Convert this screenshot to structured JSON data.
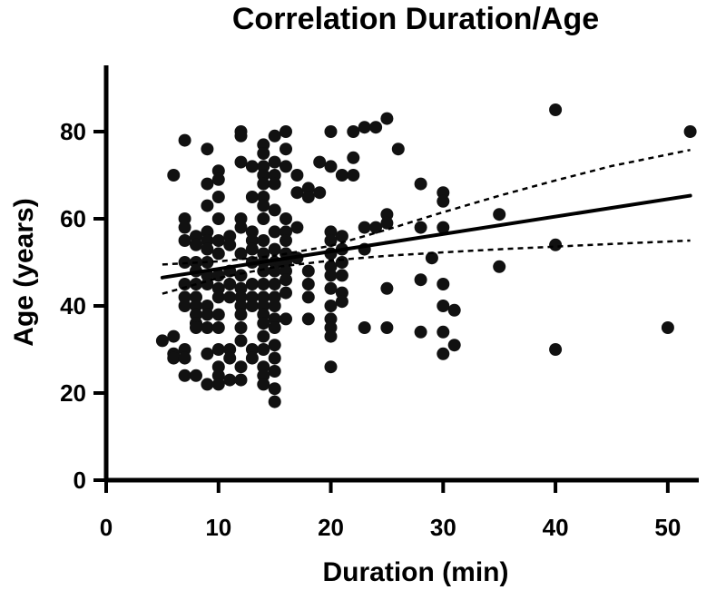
{
  "chart_data": {
    "type": "scatter",
    "title": "Correlation Duration/Age",
    "xlabel": "Duration (min)",
    "ylabel": "Age (years)",
    "xlim": [
      0,
      53
    ],
    "ylim": [
      0,
      93
    ],
    "xticks": [
      0,
      10,
      20,
      30,
      40,
      50
    ],
    "yticks": [
      0,
      20,
      40,
      60,
      80
    ],
    "grid": false,
    "series": [
      {
        "name": "observations",
        "points": [
          [
            5,
            32
          ],
          [
            6,
            33
          ],
          [
            6,
            29
          ],
          [
            6,
            28
          ],
          [
            6,
            70
          ],
          [
            7,
            78
          ],
          [
            7,
            60
          ],
          [
            7,
            58
          ],
          [
            7,
            55
          ],
          [
            7,
            50
          ],
          [
            7,
            45
          ],
          [
            7,
            42
          ],
          [
            7,
            40
          ],
          [
            7,
            30
          ],
          [
            7,
            28
          ],
          [
            7,
            24
          ],
          [
            8,
            56
          ],
          [
            8,
            54
          ],
          [
            8,
            50
          ],
          [
            8,
            48
          ],
          [
            8,
            45
          ],
          [
            8,
            42
          ],
          [
            8,
            40
          ],
          [
            8,
            38
          ],
          [
            8,
            36
          ],
          [
            8,
            35
          ],
          [
            8,
            24
          ],
          [
            9,
            76
          ],
          [
            9,
            68
          ],
          [
            9,
            63
          ],
          [
            9,
            57
          ],
          [
            9,
            55
          ],
          [
            9,
            53
          ],
          [
            9,
            50
          ],
          [
            9,
            47
          ],
          [
            9,
            45
          ],
          [
            9,
            40
          ],
          [
            9,
            38
          ],
          [
            9,
            35
          ],
          [
            9,
            29
          ],
          [
            9,
            22
          ],
          [
            10,
            71
          ],
          [
            10,
            69
          ],
          [
            10,
            65
          ],
          [
            10,
            60
          ],
          [
            10,
            55
          ],
          [
            10,
            52
          ],
          [
            10,
            47
          ],
          [
            10,
            44
          ],
          [
            10,
            42
          ],
          [
            10,
            38
          ],
          [
            10,
            35
          ],
          [
            10,
            30
          ],
          [
            10,
            26
          ],
          [
            10,
            24
          ],
          [
            10,
            22
          ],
          [
            11,
            56
          ],
          [
            11,
            54
          ],
          [
            11,
            48
          ],
          [
            11,
            45
          ],
          [
            11,
            42
          ],
          [
            11,
            30
          ],
          [
            11,
            28
          ],
          [
            11,
            23
          ],
          [
            12,
            80
          ],
          [
            12,
            79
          ],
          [
            12,
            73
          ],
          [
            12,
            60
          ],
          [
            12,
            58
          ],
          [
            12,
            52
          ],
          [
            12,
            47
          ],
          [
            12,
            44
          ],
          [
            12,
            42
          ],
          [
            12,
            40
          ],
          [
            12,
            38
          ],
          [
            12,
            35
          ],
          [
            12,
            32
          ],
          [
            12,
            26
          ],
          [
            12,
            23
          ],
          [
            13,
            72
          ],
          [
            13,
            65
          ],
          [
            13,
            57
          ],
          [
            13,
            55
          ],
          [
            13,
            53
          ],
          [
            13,
            50
          ],
          [
            13,
            45
          ],
          [
            13,
            42
          ],
          [
            13,
            40
          ],
          [
            13,
            30
          ],
          [
            13,
            28
          ],
          [
            14,
            77
          ],
          [
            14,
            75
          ],
          [
            14,
            72
          ],
          [
            14,
            70
          ],
          [
            14,
            68
          ],
          [
            14,
            65
          ],
          [
            14,
            63
          ],
          [
            14,
            60
          ],
          [
            14,
            55
          ],
          [
            14,
            52
          ],
          [
            14,
            50
          ],
          [
            14,
            48
          ],
          [
            14,
            45
          ],
          [
            14,
            42
          ],
          [
            14,
            40
          ],
          [
            14,
            38
          ],
          [
            14,
            36
          ],
          [
            14,
            33
          ],
          [
            14,
            30
          ],
          [
            14,
            26
          ],
          [
            14,
            24
          ],
          [
            14,
            22
          ],
          [
            15,
            79
          ],
          [
            15,
            73
          ],
          [
            15,
            70
          ],
          [
            15,
            68
          ],
          [
            15,
            62
          ],
          [
            15,
            57
          ],
          [
            15,
            53
          ],
          [
            15,
            50
          ],
          [
            15,
            48
          ],
          [
            15,
            45
          ],
          [
            15,
            42
          ],
          [
            15,
            40
          ],
          [
            15,
            37
          ],
          [
            15,
            35
          ],
          [
            15,
            31
          ],
          [
            15,
            28
          ],
          [
            15,
            25
          ],
          [
            15,
            21
          ],
          [
            15,
            18
          ],
          [
            16,
            80
          ],
          [
            16,
            76
          ],
          [
            16,
            72
          ],
          [
            16,
            60
          ],
          [
            16,
            57
          ],
          [
            16,
            55
          ],
          [
            16,
            52
          ],
          [
            16,
            50
          ],
          [
            16,
            48
          ],
          [
            16,
            46
          ],
          [
            16,
            43
          ],
          [
            16,
            37
          ],
          [
            17,
            70
          ],
          [
            17,
            66
          ],
          [
            17,
            58
          ],
          [
            17,
            51
          ],
          [
            18,
            67
          ],
          [
            18,
            65
          ],
          [
            18,
            48
          ],
          [
            18,
            45
          ],
          [
            18,
            42
          ],
          [
            18,
            37
          ],
          [
            19,
            73
          ],
          [
            19,
            66
          ],
          [
            20,
            80
          ],
          [
            20,
            72
          ],
          [
            20,
            57
          ],
          [
            20,
            55
          ],
          [
            20,
            52
          ],
          [
            20,
            49
          ],
          [
            20,
            47
          ],
          [
            20,
            44
          ],
          [
            20,
            40
          ],
          [
            20,
            37
          ],
          [
            20,
            35
          ],
          [
            20,
            33
          ],
          [
            20,
            26
          ],
          [
            21,
            70
          ],
          [
            21,
            56
          ],
          [
            21,
            53
          ],
          [
            21,
            50
          ],
          [
            21,
            47
          ],
          [
            21,
            43
          ],
          [
            21,
            41
          ],
          [
            22,
            80
          ],
          [
            22,
            74
          ],
          [
            22,
            70
          ],
          [
            23,
            81
          ],
          [
            23,
            58
          ],
          [
            23,
            53
          ],
          [
            23,
            35
          ],
          [
            24,
            81
          ],
          [
            24,
            58
          ],
          [
            25,
            83
          ],
          [
            25,
            61
          ],
          [
            25,
            59
          ],
          [
            25,
            44
          ],
          [
            25,
            35
          ],
          [
            26,
            76
          ],
          [
            28,
            68
          ],
          [
            28,
            58
          ],
          [
            28,
            46
          ],
          [
            28,
            34
          ],
          [
            29,
            51
          ],
          [
            30,
            66
          ],
          [
            30,
            64
          ],
          [
            30,
            58
          ],
          [
            30,
            45
          ],
          [
            30,
            40
          ],
          [
            30,
            34
          ],
          [
            30,
            29
          ],
          [
            31,
            39
          ],
          [
            31,
            31
          ],
          [
            35,
            61
          ],
          [
            35,
            49
          ],
          [
            40,
            85
          ],
          [
            40,
            54
          ],
          [
            40,
            30
          ],
          [
            50,
            35
          ],
          [
            52,
            80
          ]
        ]
      }
    ],
    "regression": {
      "fit": {
        "slope": 0.4,
        "intercept": 44.5,
        "x_range": [
          5,
          52
        ]
      },
      "ci_upper": [
        [
          5,
          49.5
        ],
        [
          10,
          50.2
        ],
        [
          15,
          51.5
        ],
        [
          20,
          53.8
        ],
        [
          25,
          57.5
        ],
        [
          30,
          61.5
        ],
        [
          35,
          65.3
        ],
        [
          40,
          68.8
        ],
        [
          45,
          72.1
        ],
        [
          52,
          75.8
        ]
      ],
      "ci_lower": [
        [
          5,
          42.8
        ],
        [
          10,
          46.4
        ],
        [
          15,
          48.9
        ],
        [
          20,
          50.4
        ],
        [
          25,
          51.5
        ],
        [
          30,
          52.3
        ],
        [
          35,
          53.0
        ],
        [
          40,
          53.6
        ],
        [
          45,
          54.2
        ],
        [
          52,
          55.0
        ]
      ]
    }
  }
}
